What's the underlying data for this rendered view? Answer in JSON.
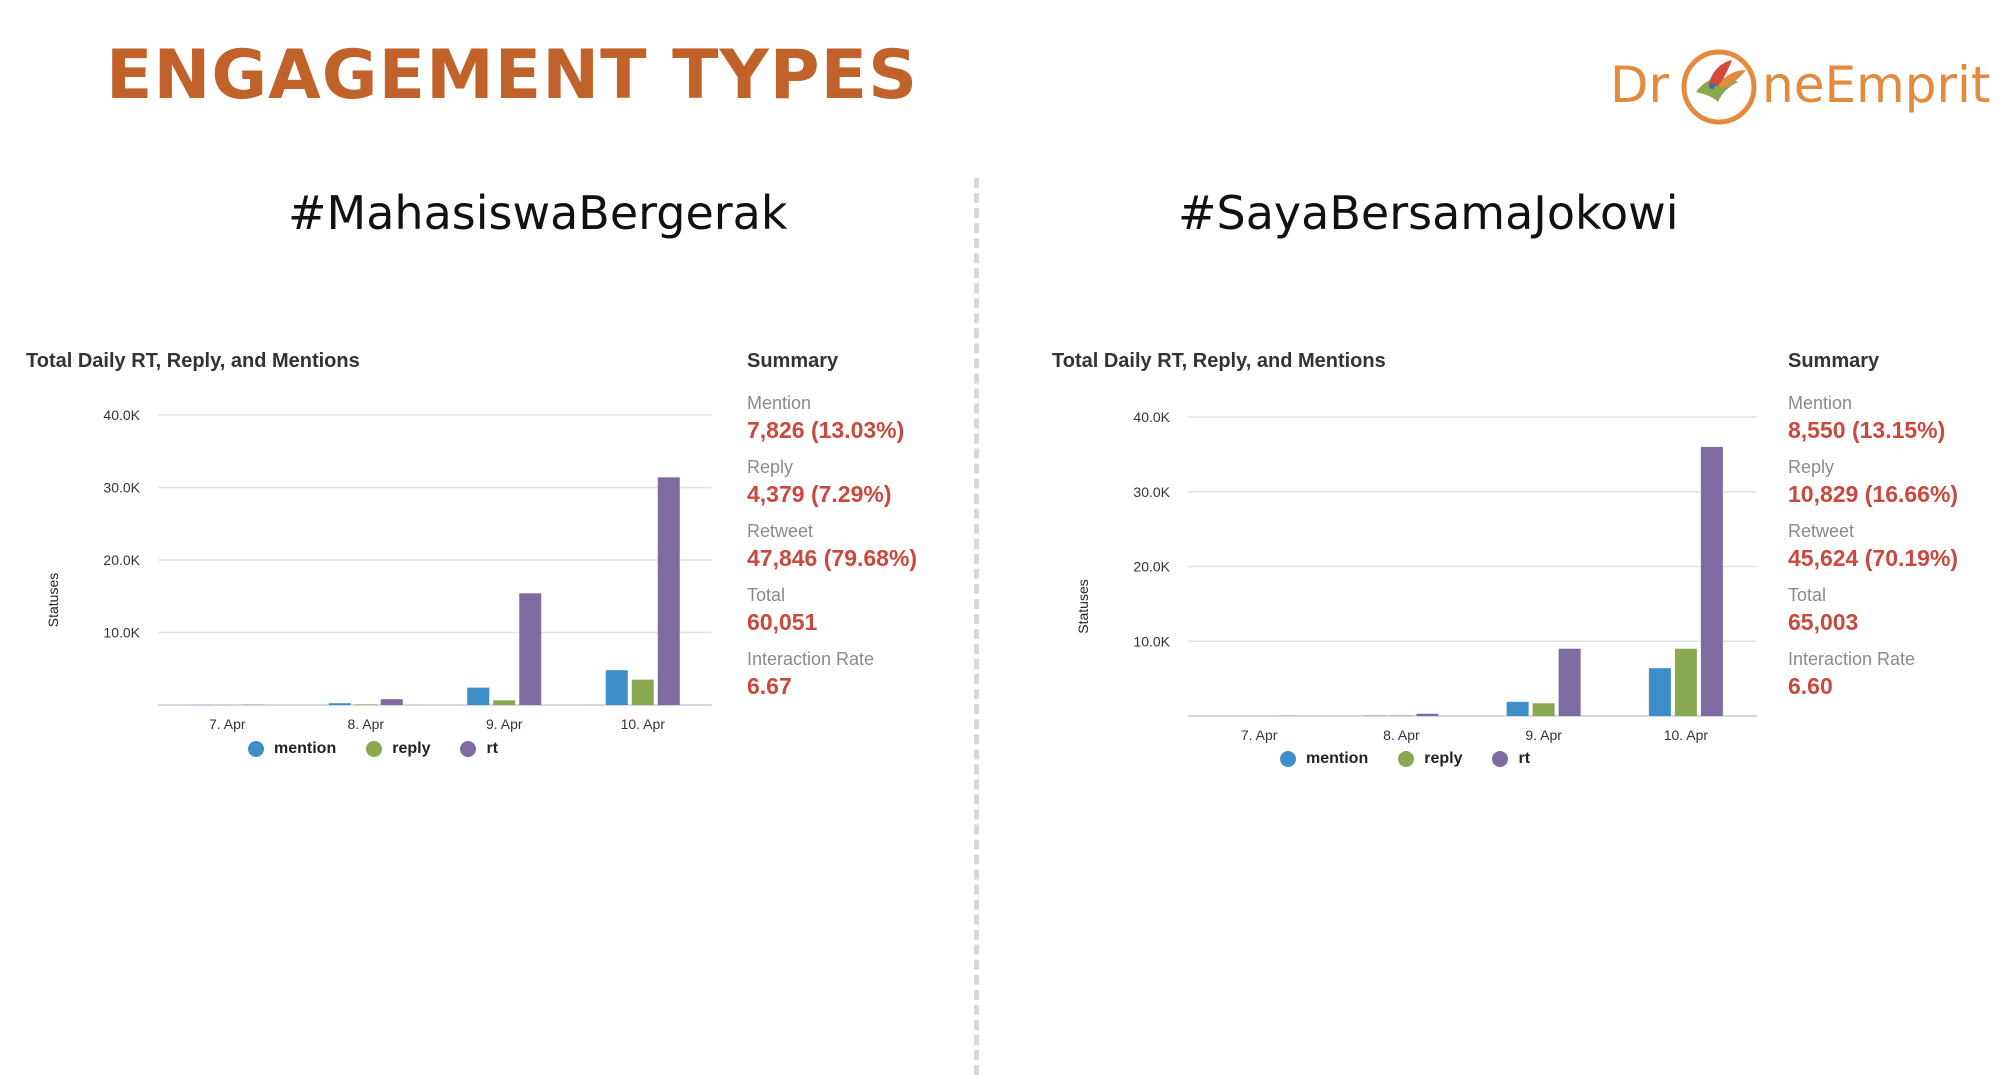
{
  "page_title": "ENGAGEMENT TYPES",
  "logo": {
    "text_left": "Dr",
    "text_right": "neEmprit",
    "icon": "bird-in-circle-icon"
  },
  "colors": {
    "title": "#c0622a",
    "mention": "#3d8ec9",
    "reply": "#8aa84f",
    "rt": "#7e6ba2",
    "value": "#c9493f"
  },
  "panels": [
    {
      "hashtag": "#MahasiswaBergerak",
      "chart_title": "Total Daily RT, Reply, and Mentions",
      "summary": {
        "title": "Summary",
        "items": [
          {
            "label": "Mention",
            "value": "7,826 (13.03%)"
          },
          {
            "label": "Reply",
            "value": "4,379 (7.29%)"
          },
          {
            "label": "Retweet",
            "value": "47,846 (79.68%)"
          },
          {
            "label": "Total",
            "value": "60,051"
          },
          {
            "label": "Interaction Rate",
            "value": "6.67"
          }
        ]
      },
      "legend": [
        "mention",
        "reply",
        "rt"
      ]
    },
    {
      "hashtag": "#SayaBersamaJokowi",
      "chart_title": "Total Daily RT, Reply, and Mentions",
      "summary": {
        "title": "Summary",
        "items": [
          {
            "label": "Mention",
            "value": "8,550 (13.15%)"
          },
          {
            "label": "Reply",
            "value": "10,829 (16.66%)"
          },
          {
            "label": "Retweet",
            "value": "45,624 (70.19%)"
          },
          {
            "label": "Total",
            "value": "65,003"
          },
          {
            "label": "Interaction Rate",
            "value": "6.60"
          }
        ]
      },
      "legend": [
        "mention",
        "reply",
        "rt"
      ]
    }
  ],
  "chart_data": [
    {
      "type": "bar",
      "title": "Total Daily RT, Reply, and Mentions",
      "xlabel": "",
      "ylabel": "Statuses",
      "categories": [
        "7. Apr",
        "8. Apr",
        "9. Apr",
        "10. Apr"
      ],
      "ylim": [
        0,
        40000
      ],
      "yticks": [
        10000,
        20000,
        30000,
        40000
      ],
      "ytick_labels": [
        "10.0K",
        "20.0K",
        "30.0K",
        "40.0K"
      ],
      "grid": true,
      "legend": "bottom",
      "series": [
        {
          "name": "mention",
          "values": [
            20,
            250,
            2400,
            4800
          ]
        },
        {
          "name": "reply",
          "values": [
            10,
            80,
            650,
            3500
          ]
        },
        {
          "name": "rt",
          "values": [
            30,
            800,
            15400,
            31400
          ]
        }
      ]
    },
    {
      "type": "bar",
      "title": "Total Daily RT, Reply, and Mentions",
      "xlabel": "",
      "ylabel": "Statuses",
      "categories": [
        "7. Apr",
        "8. Apr",
        "9. Apr",
        "10. Apr"
      ],
      "ylim": [
        0,
        40000
      ],
      "yticks": [
        10000,
        20000,
        30000,
        40000
      ],
      "ytick_labels": [
        "10.0K",
        "20.0K",
        "30.0K",
        "40.0K"
      ],
      "grid": true,
      "legend": "bottom",
      "series": [
        {
          "name": "mention",
          "values": [
            10,
            50,
            1900,
            6400
          ]
        },
        {
          "name": "reply",
          "values": [
            10,
            60,
            1700,
            9000
          ]
        },
        {
          "name": "rt",
          "values": [
            20,
            300,
            9000,
            36000
          ]
        }
      ]
    }
  ]
}
